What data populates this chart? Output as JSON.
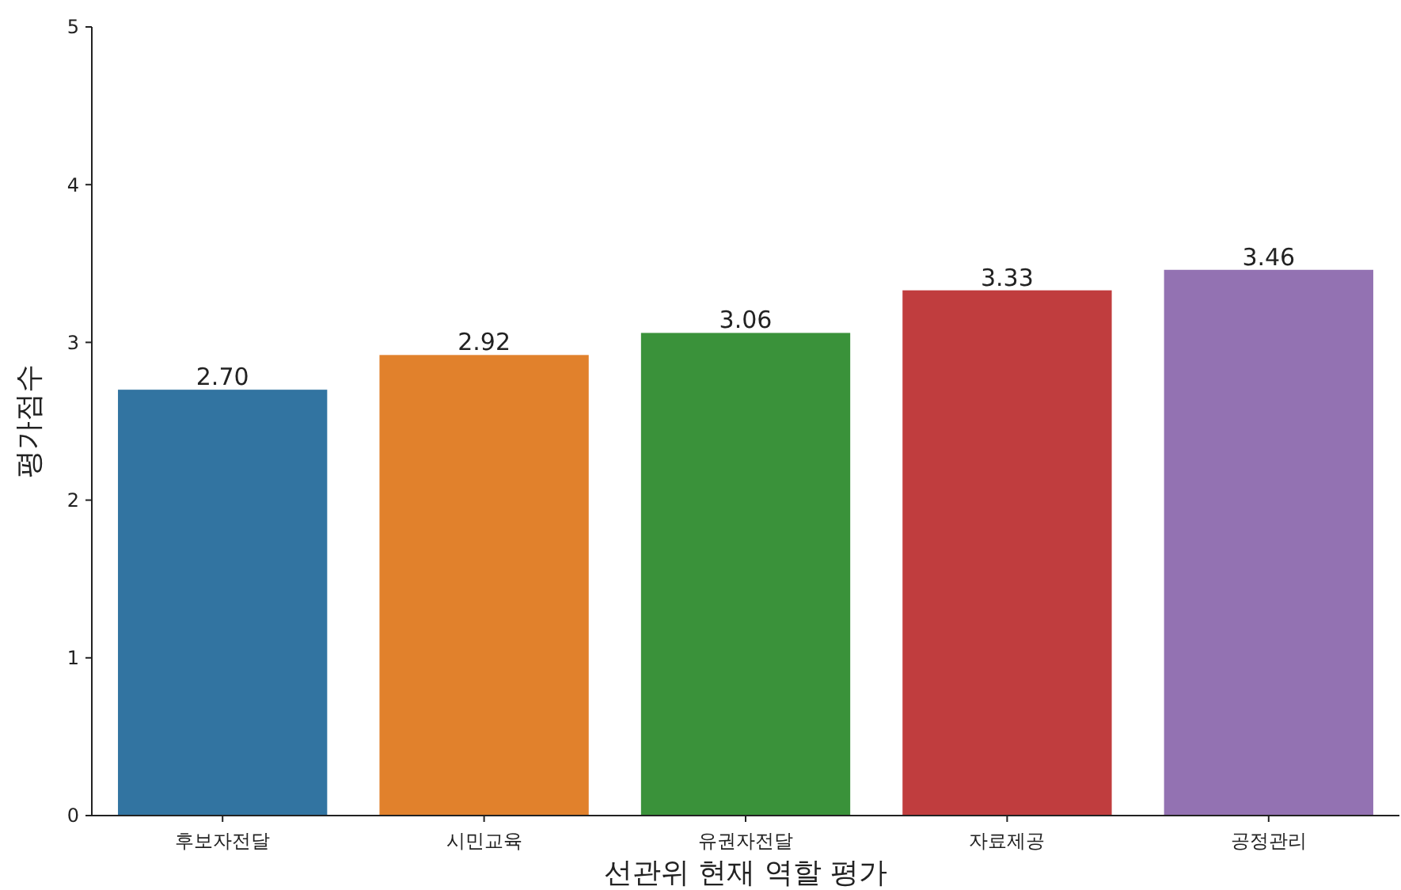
{
  "chart_data": {
    "type": "bar",
    "xlabel": "선관위 현재 역할 평가",
    "ylabel": "평가점수",
    "categories": [
      "후보자전달",
      "시민교육",
      "유권자전달",
      "자료제공",
      "공정관리"
    ],
    "values": [
      2.7,
      2.92,
      3.06,
      3.33,
      3.46
    ],
    "colors": [
      "#3274a1",
      "#e1812c",
      "#3a923a",
      "#c03d3e",
      "#9372b2"
    ],
    "value_labels": [
      "2.70",
      "2.92",
      "3.06",
      "3.33",
      "3.46"
    ],
    "ylim": [
      0,
      5
    ],
    "yticks": [
      0,
      1,
      2,
      3,
      4,
      5
    ],
    "grid": false
  }
}
